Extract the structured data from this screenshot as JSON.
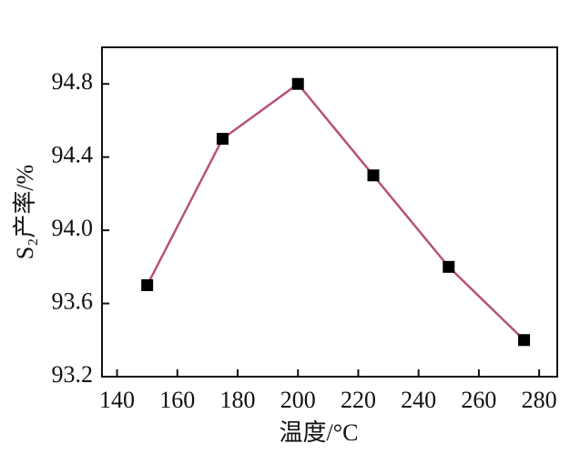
{
  "chart_data": {
    "type": "line",
    "x": [
      150,
      175,
      200,
      225,
      250,
      275
    ],
    "series": [
      {
        "name": "S₂产率",
        "color": "#b8507e",
        "marker_color": "#000000",
        "values": [
          93.7,
          94.5,
          94.8,
          94.3,
          93.8,
          93.4
        ]
      }
    ],
    "xlabel": "温度/°C",
    "ylabel": "S₂产率/%",
    "xlim": [
      135,
      286
    ],
    "xticks": [
      140,
      160,
      180,
      200,
      220,
      240,
      260,
      280
    ],
    "ylim": [
      93.2,
      95.0
    ],
    "yticks": [
      {
        "value": 93.2,
        "label": "93.2"
      },
      {
        "value": 93.6,
        "label": "93.6"
      },
      {
        "value": 94,
        "label": "94.0"
      },
      {
        "value": 94.4,
        "label": "94.4"
      },
      {
        "value": 94.8,
        "label": "94.8"
      }
    ],
    "grid": false
  }
}
